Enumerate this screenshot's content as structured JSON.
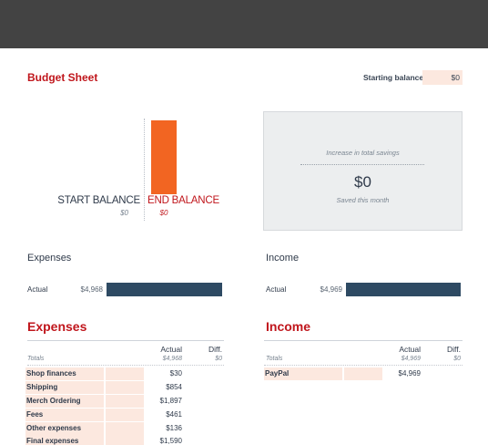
{
  "sheet": {
    "title": "Budget Sheet",
    "starting_balance_label": "Starting balance:",
    "starting_balance_value": "$0"
  },
  "balance_chart": {
    "start_label": "START BALANCE",
    "start_value": "$0",
    "end_label": "END BALANCE",
    "end_value": "$0"
  },
  "savings": {
    "caption": "Increase in total savings",
    "amount": "$0",
    "subcaption": "Saved this month"
  },
  "expenses_summary": {
    "title": "Expenses",
    "row_label": "Actual",
    "value": "$4,968"
  },
  "income_summary": {
    "title": "Income",
    "row_label": "Actual",
    "value": "$4,969"
  },
  "expenses_table": {
    "title": "Expenses",
    "col_actual": "Actual",
    "col_diff": "Diff.",
    "totals_label": "Totals",
    "total_actual": "$4,968",
    "total_diff": "$0",
    "rows": [
      {
        "name": "Shop finances",
        "actual": "$30"
      },
      {
        "name": "Shipping",
        "actual": "$854"
      },
      {
        "name": "Merch Ordering",
        "actual": "$1,897"
      },
      {
        "name": "Fees",
        "actual": "$461"
      },
      {
        "name": "Other expenses",
        "actual": "$136"
      },
      {
        "name": "Final expenses",
        "actual": "$1,590"
      }
    ]
  },
  "income_table": {
    "title": "Income",
    "col_actual": "Actual",
    "col_diff": "Diff.",
    "totals_label": "Totals",
    "total_actual": "$4,969",
    "total_diff": "$0",
    "rows": [
      {
        "name": "PayPal",
        "actual": "$4,969"
      }
    ]
  },
  "colors": {
    "brand_red": "#c0161c",
    "end_bar": "#f26522",
    "actual_bar": "#2e4a63",
    "input_fill": "#fce8df",
    "topbar": "#434343"
  }
}
